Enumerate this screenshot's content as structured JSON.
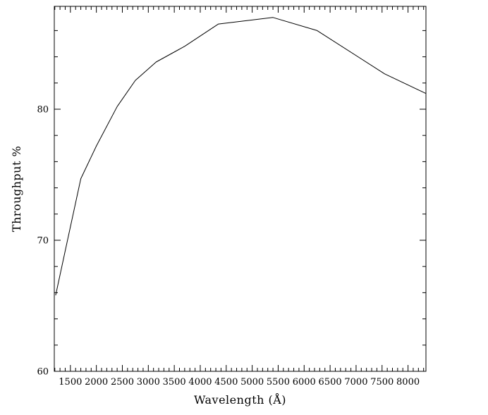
{
  "figure": {
    "background_color": "#ffffff",
    "line_color": "#000000",
    "frame_color": "#000000"
  },
  "chart_data": {
    "type": "line",
    "xlabel": "Wavelength (Å)",
    "ylabel": "Throughput %",
    "xlim": [
      1190,
      8345
    ],
    "ylim": [
      60,
      87.85
    ],
    "grid": false,
    "legend": null,
    "x_ticks": {
      "major": [
        1500,
        2000,
        2500,
        3000,
        3500,
        4000,
        4500,
        5000,
        5500,
        6000,
        6500,
        7000,
        7500,
        8000
      ],
      "labels": [
        "1500",
        "2000",
        "2500",
        "3000",
        "3500",
        "4000",
        "4500",
        "5000",
        "5500",
        "6000",
        "6500",
        "7000",
        "7500",
        "8000"
      ],
      "minor_step": 100
    },
    "y_ticks": {
      "major": [
        60,
        70,
        80
      ],
      "labels": [
        "60",
        "70",
        "80"
      ],
      "minor_step": 2
    },
    "series": [
      {
        "name": "throughput",
        "points": [
          [
            1216,
            65.8
          ],
          [
            1400,
            69.2
          ],
          [
            1700,
            74.7
          ],
          [
            2000,
            77.2
          ],
          [
            2400,
            80.2
          ],
          [
            2750,
            82.2
          ],
          [
            3150,
            83.6
          ],
          [
            3700,
            84.8
          ],
          [
            4350,
            86.5
          ],
          [
            5400,
            87.0
          ],
          [
            6250,
            86.0
          ],
          [
            7550,
            82.7
          ],
          [
            8345,
            81.2
          ]
        ]
      }
    ]
  }
}
